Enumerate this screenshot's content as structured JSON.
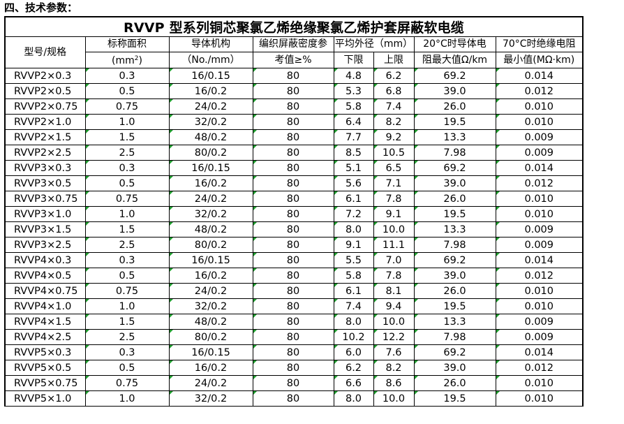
{
  "section_heading": "四、技术参数：",
  "table_title": "RVVP 型系列铜芯聚氯乙烯绝缘聚氯乙烯护套屏蔽软电缆",
  "headers": {
    "model": "型号/规格",
    "area_line1": "标称面积",
    "area_line2_pre": "(mm",
    "area_line2_sup": "2",
    "area_line2_post": ")",
    "structure_line1": "导体机构",
    "structure_line2": "（No./mm）",
    "shield_line1": "编织屏蔽密度参",
    "shield_line2": "考值≥%",
    "diameter": "平均外径（mm）",
    "diameter_lower": "下限",
    "diameter_upper": "上限",
    "resistance_line1": "20°C时导体电",
    "resistance_line2": "阻最大值Ω/km",
    "insulation_line1": "70°C时绝缘电阻",
    "insulation_line2": "最小值(MΩ·km)"
  },
  "rows": [
    {
      "model": "RVVP2×0.3",
      "area": "0.3",
      "structure": "16/0.15",
      "shield": "80",
      "lower": "4.8",
      "upper": "6.2",
      "resistance": "69.2",
      "insulation": "0.014"
    },
    {
      "model": "RVVP2×0.5",
      "area": "0.5",
      "structure": "16/0.2",
      "shield": "80",
      "lower": "5.3",
      "upper": "6.8",
      "resistance": "39.0",
      "insulation": "0.012"
    },
    {
      "model": "RVVP2×0.75",
      "area": "0.75",
      "structure": "24/0.2",
      "shield": "80",
      "lower": "5.8",
      "upper": "7.4",
      "resistance": "26.0",
      "insulation": "0.010"
    },
    {
      "model": "RVVP2×1.0",
      "area": "1.0",
      "structure": "32/0.2",
      "shield": "80",
      "lower": "6.4",
      "upper": "8.2",
      "resistance": "19.5",
      "insulation": "0.010"
    },
    {
      "model": "RVVP2×1.5",
      "area": "1.5",
      "structure": "48/0.2",
      "shield": "80",
      "lower": "7.7",
      "upper": "9.2",
      "resistance": "13.3",
      "insulation": "0.009"
    },
    {
      "model": "RVVP2×2.5",
      "area": "2.5",
      "structure": "80/0.2",
      "shield": "80",
      "lower": "8.5",
      "upper": "10.5",
      "resistance": "7.98",
      "insulation": "0.009"
    },
    {
      "model": "RVVP3×0.3",
      "area": "0.3",
      "structure": "16/0.15",
      "shield": "80",
      "lower": "5.1",
      "upper": "6.5",
      "resistance": "69.2",
      "insulation": "0.014"
    },
    {
      "model": "RVVP3×0.5",
      "area": "0.5",
      "structure": "16/0.2",
      "shield": "80",
      "lower": "5.6",
      "upper": "7.1",
      "resistance": "39.0",
      "insulation": "0.012"
    },
    {
      "model": "RVVP3×0.75",
      "area": "0.75",
      "structure": "24/0.2",
      "shield": "80",
      "lower": "6.1",
      "upper": "7.8",
      "resistance": "26.0",
      "insulation": "0.010"
    },
    {
      "model": "RVVP3×1.0",
      "area": "1.0",
      "structure": "32/0.2",
      "shield": "80",
      "lower": "7.2",
      "upper": "9.1",
      "resistance": "19.5",
      "insulation": "0.010"
    },
    {
      "model": "RVVP3×1.5",
      "area": "1.5",
      "structure": "48/0.2",
      "shield": "80",
      "lower": "8.0",
      "upper": "10.0",
      "resistance": "13.3",
      "insulation": "0.009"
    },
    {
      "model": "RVVP3×2.5",
      "area": "2.5",
      "structure": "80/0.2",
      "shield": "80",
      "lower": "9.1",
      "upper": "11.1",
      "resistance": "7.98",
      "insulation": "0.009"
    },
    {
      "model": "RVVP4×0.3",
      "area": "0.3",
      "structure": "16/0.15",
      "shield": "80",
      "lower": "5.5",
      "upper": "7.0",
      "resistance": "69.2",
      "insulation": "0.014"
    },
    {
      "model": "RVVP4×0.5",
      "area": "0.5",
      "structure": "16/0.2",
      "shield": "80",
      "lower": "5.8",
      "upper": "7.8",
      "resistance": "39.0",
      "insulation": "0.012"
    },
    {
      "model": "RVVP4×0.75",
      "area": "0.75",
      "structure": "24/0.2",
      "shield": "80",
      "lower": "6.1",
      "upper": "8.1",
      "resistance": "26.0",
      "insulation": "0.010"
    },
    {
      "model": "RVVP4×1.0",
      "area": "1.0",
      "structure": "32/0.2",
      "shield": "80",
      "lower": "7.4",
      "upper": "9.4",
      "resistance": "19.5",
      "insulation": "0.010"
    },
    {
      "model": "RVVP4×1.5",
      "area": "1.5",
      "structure": "48/0.2",
      "shield": "80",
      "lower": "8.0",
      "upper": "10.0",
      "resistance": "13.3",
      "insulation": "0.009"
    },
    {
      "model": "RVVP4×2.5",
      "area": "2.5",
      "structure": "80/0.2",
      "shield": "80",
      "lower": "10.2",
      "upper": "12.2",
      "resistance": "7.98",
      "insulation": "0.009"
    },
    {
      "model": "RVVP5×0.3",
      "area": "0.3",
      "structure": "16/0.15",
      "shield": "80",
      "lower": "6.0",
      "upper": "7.6",
      "resistance": "69.2",
      "insulation": "0.014"
    },
    {
      "model": "RVVP5×0.5",
      "area": "0.5",
      "structure": "16/0.2",
      "shield": "80",
      "lower": "6.2",
      "upper": "8.2",
      "resistance": "39.0",
      "insulation": "0.012"
    },
    {
      "model": "RVVP5×0.75",
      "area": "0.75",
      "structure": "24/0.2",
      "shield": "80",
      "lower": "6.6",
      "upper": "8.6",
      "resistance": "26.0",
      "insulation": "0.010"
    },
    {
      "model": "RVVP5×1.0",
      "area": "1.0",
      "structure": "32/0.2",
      "shield": "80",
      "lower": "8.0",
      "upper": "10.0",
      "resistance": "19.5",
      "insulation": "0.010"
    }
  ],
  "colors": {
    "cell_marker": "#1f9e2e",
    "border": "#000000",
    "background": "#ffffff"
  }
}
